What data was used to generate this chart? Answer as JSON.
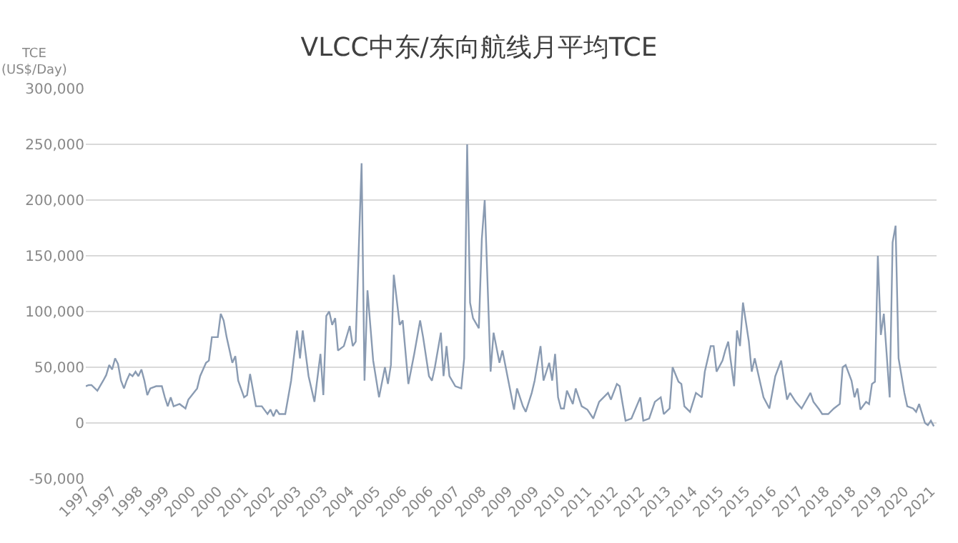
{
  "chart_data": {
    "type": "line",
    "title": "VLCC中东/东向航线月平均TCE",
    "ylabel": "TCE\n(US$/Day)",
    "x": [
      "1997-01",
      "1997-02",
      "1997-03",
      "1997-05",
      "1997-07",
      "1997-08",
      "1997-09",
      "1997-10",
      "1997-11",
      "1997-12",
      "1998-01",
      "1998-02",
      "1998-03",
      "1998-04",
      "1998-05",
      "1998-06",
      "1998-07",
      "1998-08",
      "1998-09",
      "1998-10",
      "1998-11",
      "1999-01",
      "1999-03",
      "1999-04",
      "1999-05",
      "1999-06",
      "1999-07",
      "1999-09",
      "1999-11",
      "1999-12",
      "2000-03",
      "2000-04",
      "2000-06",
      "2000-07",
      "2000-08",
      "2000-10",
      "2000-11",
      "2000-12",
      "2001-01",
      "2001-03",
      "2001-04",
      "2001-05",
      "2001-07",
      "2001-08",
      "2001-09",
      "2001-11",
      "2002-01",
      "2002-03",
      "2002-04",
      "2002-05",
      "2002-06",
      "2002-07",
      "2002-09",
      "2002-11",
      "2003-01",
      "2003-02",
      "2003-03",
      "2003-05",
      "2003-07",
      "2003-09",
      "2003-10",
      "2003-11",
      "2003-12",
      "2004-01",
      "2004-02",
      "2004-03",
      "2004-05",
      "2004-07",
      "2004-08",
      "2004-09",
      "2004-11",
      "2004-12",
      "2005-01",
      "2005-03",
      "2005-05",
      "2005-07",
      "2005-08",
      "2005-09",
      "2005-10",
      "2005-12",
      "2006-01",
      "2006-03",
      "2006-05",
      "2006-07",
      "2006-08",
      "2006-10",
      "2006-11",
      "2006-12",
      "2007-02",
      "2007-03",
      "2007-04",
      "2007-05",
      "2007-07",
      "2007-09",
      "2007-10",
      "2007-11",
      "2007-12",
      "2008-01",
      "2008-03",
      "2008-04",
      "2008-05",
      "2008-07",
      "2008-08",
      "2008-10",
      "2008-11",
      "2009-01",
      "2009-03",
      "2009-04",
      "2009-06",
      "2009-07",
      "2009-09",
      "2009-10",
      "2009-12",
      "2010-01",
      "2010-03",
      "2010-04",
      "2010-05",
      "2010-06",
      "2010-07",
      "2010-08",
      "2010-09",
      "2010-11",
      "2010-12",
      "2011-02",
      "2011-04",
      "2011-06",
      "2011-08",
      "2011-11",
      "2011-12",
      "2012-02",
      "2012-03",
      "2012-04",
      "2012-05",
      "2012-07",
      "2012-10",
      "2012-11",
      "2013-01",
      "2013-03",
      "2013-05",
      "2013-06",
      "2013-08",
      "2013-09",
      "2013-11",
      "2013-12",
      "2014-01",
      "2014-03",
      "2014-05",
      "2014-07",
      "2014-08",
      "2014-10",
      "2014-11",
      "2014-12",
      "2015-02",
      "2015-03",
      "2015-04",
      "2015-06",
      "2015-07",
      "2015-08",
      "2015-09",
      "2015-11",
      "2015-12",
      "2016-01",
      "2016-02",
      "2016-04",
      "2016-06",
      "2016-08",
      "2016-10",
      "2016-11",
      "2016-12",
      "2017-01",
      "2017-03",
      "2017-05",
      "2017-08",
      "2017-09",
      "2017-11",
      "2017-12",
      "2018-02",
      "2018-04",
      "2018-06",
      "2018-07",
      "2018-08",
      "2018-10",
      "2018-11",
      "2018-12",
      "2019-01",
      "2019-03",
      "2019-04",
      "2019-05",
      "2019-06",
      "2019-07",
      "2019-08",
      "2019-09",
      "2019-11",
      "2019-12",
      "2020-01",
      "2020-02",
      "2020-04",
      "2020-05",
      "2020-07",
      "2020-08",
      "2020-09",
      "2020-11",
      "2020-12",
      "2021-01",
      "2021-02"
    ],
    "series": [
      {
        "color": "#8a9bb2",
        "values": [
          33000,
          34000,
          34000,
          29000,
          38000,
          43000,
          52000,
          48000,
          58000,
          53000,
          38000,
          31000,
          38000,
          44000,
          42000,
          46000,
          42000,
          48000,
          38000,
          25000,
          31000,
          33000,
          33000,
          23000,
          15000,
          23000,
          15000,
          17000,
          13000,
          21000,
          31000,
          42000,
          54000,
          56000,
          77000,
          77000,
          98000,
          92000,
          77000,
          54000,
          60000,
          38000,
          23000,
          25000,
          44000,
          15000,
          15000,
          8000,
          12000,
          6000,
          12000,
          8000,
          8000,
          38000,
          83000,
          58000,
          83000,
          42000,
          19000,
          62000,
          25000,
          96000,
          100000,
          88000,
          94000,
          65000,
          69000,
          87000,
          69000,
          73000,
          233000,
          38000,
          119000,
          56000,
          23000,
          50000,
          35000,
          52000,
          133000,
          88000,
          92000,
          35000,
          62000,
          92000,
          77000,
          42000,
          38000,
          50000,
          81000,
          42000,
          69000,
          42000,
          33000,
          31000,
          58000,
          250000,
          108000,
          94000,
          85000,
          165000,
          200000,
          46000,
          81000,
          54000,
          65000,
          38000,
          12000,
          31000,
          15000,
          10000,
          27000,
          38000,
          69000,
          38000,
          54000,
          38000,
          62000,
          23000,
          13000,
          13000,
          29000,
          17000,
          31000,
          15000,
          12000,
          4000,
          19000,
          27000,
          21000,
          35000,
          33000,
          17000,
          2000,
          4000,
          23000,
          2000,
          4000,
          19000,
          23000,
          8000,
          13000,
          50000,
          37000,
          35000,
          15000,
          10000,
          27000,
          23000,
          46000,
          69000,
          69000,
          46000,
          56000,
          65000,
          73000,
          33000,
          83000,
          69000,
          108000,
          73000,
          46000,
          58000,
          46000,
          23000,
          13000,
          42000,
          56000,
          38000,
          21000,
          27000,
          19000,
          13000,
          27000,
          19000,
          12000,
          8000,
          8000,
          13000,
          17000,
          50000,
          52000,
          38000,
          23000,
          31000,
          12000,
          19000,
          17000,
          35000,
          37000,
          150000,
          79000,
          98000,
          23000,
          162000,
          177000,
          58000,
          27000,
          15000,
          13000,
          10000,
          17000,
          0,
          -2000,
          2000,
          -3000
        ]
      }
    ],
    "xlim": [
      "1997-01",
      "2021-03"
    ],
    "xticks": [
      {
        "value": "1997-01",
        "label": "1997"
      },
      {
        "value": "1997-10",
        "label": "1997"
      },
      {
        "value": "1998-07",
        "label": "1998"
      },
      {
        "value": "1999-04",
        "label": "1999"
      },
      {
        "value": "2000-01",
        "label": "2000"
      },
      {
        "value": "2000-10",
        "label": "2000"
      },
      {
        "value": "2001-07",
        "label": "2001"
      },
      {
        "value": "2002-04",
        "label": "2002"
      },
      {
        "value": "2003-01",
        "label": "2003"
      },
      {
        "value": "2003-10",
        "label": "2003"
      },
      {
        "value": "2004-07",
        "label": "2004"
      },
      {
        "value": "2005-04",
        "label": "2005"
      },
      {
        "value": "2006-01",
        "label": "2006"
      },
      {
        "value": "2006-10",
        "label": "2006"
      },
      {
        "value": "2007-07",
        "label": "2007"
      },
      {
        "value": "2008-04",
        "label": "2008"
      },
      {
        "value": "2009-01",
        "label": "2009"
      },
      {
        "value": "2009-10",
        "label": "2009"
      },
      {
        "value": "2010-07",
        "label": "2010"
      },
      {
        "value": "2011-04",
        "label": "2011"
      },
      {
        "value": "2012-01",
        "label": "2012"
      },
      {
        "value": "2012-10",
        "label": "2012"
      },
      {
        "value": "2013-07",
        "label": "2013"
      },
      {
        "value": "2014-04",
        "label": "2014"
      },
      {
        "value": "2015-01",
        "label": "2015"
      },
      {
        "value": "2015-10",
        "label": "2015"
      },
      {
        "value": "2016-07",
        "label": "2016"
      },
      {
        "value": "2017-04",
        "label": "2017"
      },
      {
        "value": "2018-01",
        "label": "2018"
      },
      {
        "value": "2018-10",
        "label": "2018"
      },
      {
        "value": "2019-07",
        "label": "2019"
      },
      {
        "value": "2020-04",
        "label": "2020"
      },
      {
        "value": "2021-01",
        "label": "2021"
      }
    ],
    "ylim": [
      -50000,
      300000
    ],
    "yticks": [
      {
        "value": -50000,
        "label": "-50,000"
      },
      {
        "value": 0,
        "label": "0"
      },
      {
        "value": 50000,
        "label": "50,000"
      },
      {
        "value": 100000,
        "label": "100,000"
      },
      {
        "value": 150000,
        "label": "150,000"
      },
      {
        "value": 200000,
        "label": "200,000"
      },
      {
        "value": 250000,
        "label": "250,000"
      },
      {
        "value": 300000,
        "label": "300,000"
      }
    ],
    "grid": "y",
    "line_style": "solid"
  }
}
